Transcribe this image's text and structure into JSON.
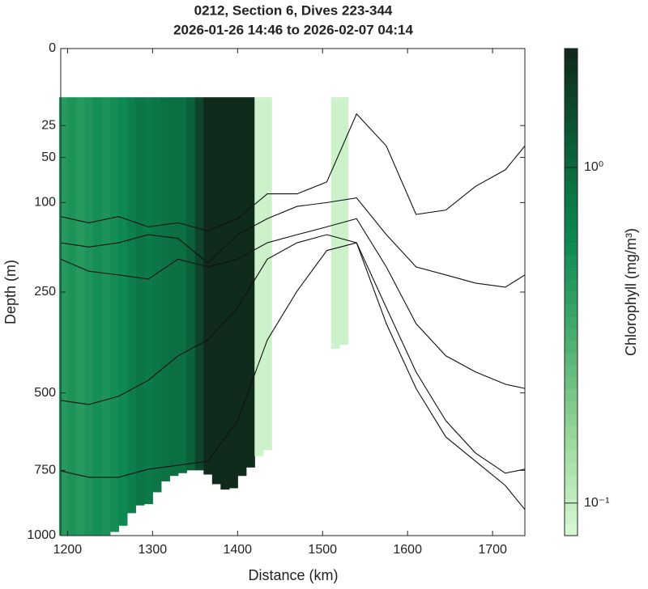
{
  "chart_data": {
    "type": "section",
    "title": "0212, Section 6, Dives 223-344",
    "subtitle": "2026-01-26 14:46 to 2026-02-07 04:14",
    "xlabel": "Distance (km)",
    "ylabel": "Depth (m)",
    "colorbar_label": "Chlorophyll (mg/m³)",
    "xlim": [
      1192,
      1738
    ],
    "xticks": [
      1200,
      1300,
      1400,
      1500,
      1600,
      1700
    ],
    "ylim": [
      0,
      1000
    ],
    "yscale": "sqrt",
    "yticks": [
      0,
      25,
      50,
      100,
      250,
      500,
      750,
      1000
    ],
    "clim": [
      0.08,
      2.26
    ],
    "cscale": "log",
    "cticks": [
      {
        "value": 1,
        "label": "10⁰"
      },
      {
        "value": 0.1,
        "label": "10⁻¹"
      }
    ],
    "colormap": [
      "#d8f8d5",
      "#9ad89a",
      "#4cae70",
      "#0d8a52",
      "#0b5e38",
      "#10281a"
    ],
    "top_depth": 10,
    "columns": {
      "x": [
        1195,
        1205,
        1215,
        1225,
        1235,
        1245,
        1255,
        1265,
        1275,
        1285,
        1295,
        1305,
        1315,
        1325,
        1335,
        1345,
        1355,
        1365,
        1375,
        1385,
        1395,
        1405,
        1415,
        1425,
        1435,
        1515,
        1525
      ],
      "values": [
        0.45,
        0.5,
        0.45,
        0.5,
        0.55,
        0.5,
        0.55,
        0.6,
        0.7,
        0.8,
        0.75,
        0.8,
        0.85,
        0.9,
        0.9,
        1.1,
        1.6,
        2.2,
        2.2,
        2.2,
        2.2,
        2.2,
        2.2,
        0.09,
        0.09,
        0.09,
        0.09
      ],
      "bottom": [
        1000,
        1000,
        1000,
        1000,
        1000,
        1000,
        985,
        960,
        910,
        880,
        875,
        830,
        790,
        770,
        760,
        750,
        750,
        765,
        800,
        820,
        815,
        770,
        740,
        700,
        680,
        380,
        370
      ]
    },
    "line_x": [
      1190,
      1225,
      1260,
      1295,
      1330,
      1365,
      1400,
      1435,
      1470,
      1505,
      1540,
      1575,
      1610,
      1645,
      1680,
      1715,
      1740
    ],
    "lines": [
      {
        "values": [
          119,
          128,
          119,
          134,
          128,
          140,
          122,
          89,
          89,
          75,
          18,
          40,
          116,
          110,
          80,
          62,
          40
        ]
      },
      {
        "values": [
          159,
          166,
          159,
          146,
          152,
          194,
          146,
          122,
          105,
          100,
          94,
          146,
          201,
          216,
          232,
          240,
          216
        ]
      },
      {
        "values": [
          187,
          209,
          216,
          224,
          187,
          201,
          187,
          159,
          146,
          134,
          122,
          201,
          319,
          398,
          441,
          475,
          487
        ]
      },
      {
        "values": [
          522,
          534,
          510,
          464,
          398,
          358,
          283,
          187,
          159,
          146,
          159,
          283,
          441,
          584,
          690,
          760,
          746
        ]
      },
      {
        "values": [
          752,
          775,
          775,
          746,
          732,
          718,
          584,
          358,
          248,
          172,
          159,
          319,
          487,
          636,
          718,
          805,
          896
        ]
      }
    ]
  }
}
